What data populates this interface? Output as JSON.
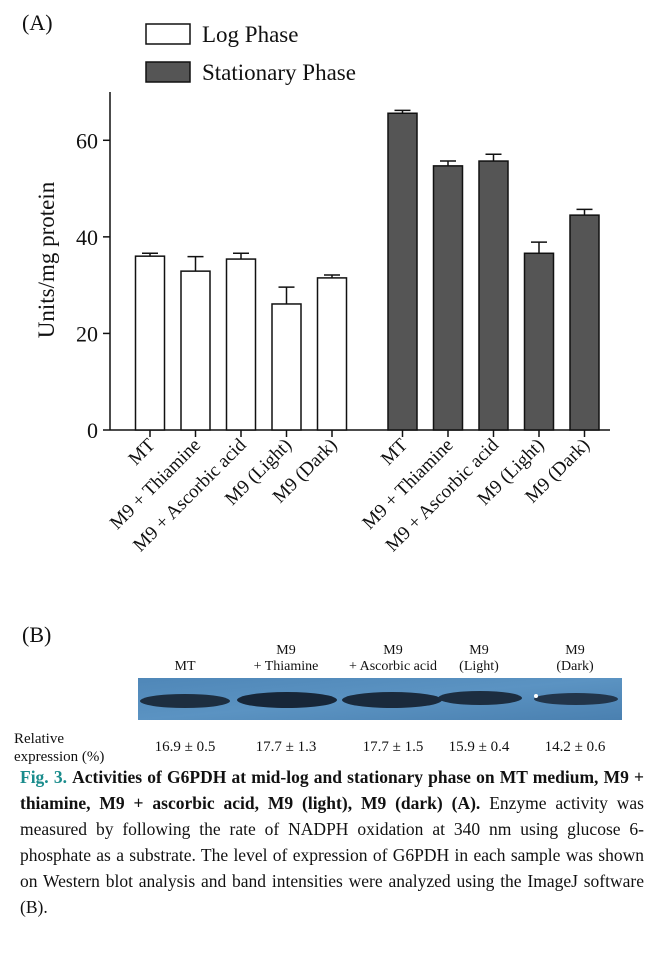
{
  "chart_data": {
    "type": "bar",
    "ylabel": "Units/mg protein",
    "categories": [
      "MT",
      "M9 + Thiamine",
      "M9 + Ascorbic acid",
      "M9 (Light)",
      "M9 (Dark)",
      "MT",
      "M9 + Thiamine",
      "M9 + Ascorbic acid",
      "M9 (Light)",
      "M9 (Dark)"
    ],
    "series": [
      {
        "name": "Log Phase",
        "color": "#ffffff",
        "values": [
          36,
          32.9,
          35.4,
          26.1,
          31.5,
          null,
          null,
          null,
          null,
          null
        ],
        "errors": [
          0.6,
          3,
          1.2,
          3.5,
          0.6,
          null,
          null,
          null,
          null,
          null
        ]
      },
      {
        "name": "Stationary Phase",
        "color": "#555555",
        "values": [
          null,
          null,
          null,
          null,
          null,
          65.6,
          54.7,
          55.7,
          36.6,
          44.5
        ],
        "errors": [
          null,
          null,
          null,
          null,
          null,
          0.6,
          1,
          1.4,
          2.3,
          1.2
        ]
      }
    ],
    "ylim": [
      0,
      70
    ],
    "yticks": [
      0,
      20,
      40,
      60
    ],
    "grid": false,
    "legend": "top"
  },
  "panel_labels": [
    "(A)",
    "(B)"
  ],
  "blot": {
    "columns": [
      [
        "MT"
      ],
      [
        "M9",
        "+ Thiamine"
      ],
      [
        "M9",
        "+ Ascorbic acid"
      ],
      [
        "M9",
        "(Light)"
      ],
      [
        "M9",
        "(Dark)"
      ]
    ],
    "row_label": [
      "Relative",
      "expression (%)"
    ],
    "relative_expression": [
      "16.9 ± 0.5",
      "17.7 ± 1.3",
      "17.7 ± 1.5",
      "15.9 ± 0.4",
      "14.2 ± 0.6"
    ]
  },
  "caption": {
    "label": "Fig. 3.",
    "title": "Activities of G6PDH at mid-log and stationary phase on MT medium, M9 + thiamine, M9 + ascorbic acid, M9 (light), M9 (dark) (A).",
    "text": "Enzyme activity was measured by following the rate of NADPH oxidation at 340 nm using glucose 6-phosphate as a substrate. The level of expression of G6PDH in each sample was shown on Western blot analysis and band intensities were analyzed using the ImageJ software (B)."
  }
}
